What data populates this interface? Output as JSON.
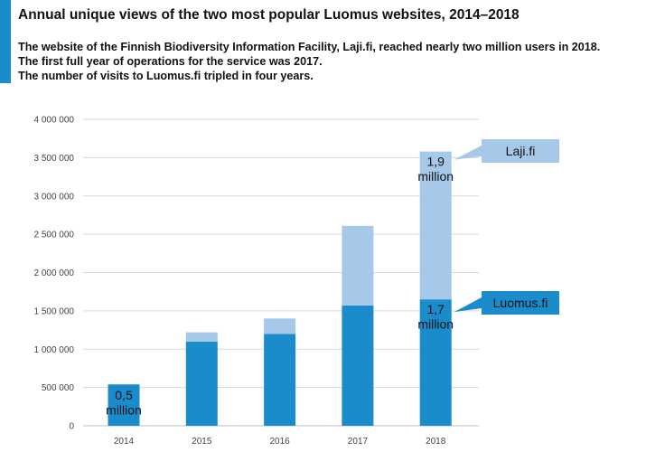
{
  "title": "Annual unique views of the two most popular Luomus websites, 2014–2018",
  "subtitle_lines": [
    "The website of the Finnish Biodiversity Information Facility, Laji.fi, reached nearly two million users in 2018.",
    "The first full year of operations for the service was 2017.",
    "The number of visits to Luomus.fi tripled in four years."
  ],
  "colors": {
    "accent": "#1b8ccb",
    "luomus": "#1b8ccb",
    "laji": "#a6c9e9",
    "grid": "#d9d9d9"
  },
  "chart_data": {
    "type": "bar",
    "stacked": true,
    "categories": [
      "2014",
      "2015",
      "2016",
      "2017",
      "2018"
    ],
    "series": [
      {
        "name": "Luomus.fi",
        "values": [
          540000,
          1100000,
          1200000,
          1570000,
          1650000
        ]
      },
      {
        "name": "Laji.fi",
        "values": [
          0,
          120000,
          200000,
          1040000,
          1930000
        ]
      }
    ],
    "ylim": [
      0,
      4000000
    ],
    "y_ticks": [
      {
        "value": 0,
        "label": "0"
      },
      {
        "value": 500000,
        "label": "500 000"
      },
      {
        "value": 1000000,
        "label": "1 000 000"
      },
      {
        "value": 1500000,
        "label": "1 500 000"
      },
      {
        "value": 2000000,
        "label": "2 000 000"
      },
      {
        "value": 2500000,
        "label": "2 500 000"
      },
      {
        "value": 3000000,
        "label": "3 000 000"
      },
      {
        "value": 3500000,
        "label": "3 500 000"
      },
      {
        "value": 4000000,
        "label": "4 000 000"
      }
    ],
    "grid": true,
    "annotations": [
      {
        "category": "2014",
        "series": "Luomus.fi",
        "lines": [
          "0,5",
          "million"
        ]
      },
      {
        "category": "2018",
        "series": "Laji.fi",
        "lines": [
          "1,9",
          "million"
        ]
      },
      {
        "category": "2018",
        "series": "Luomus.fi",
        "lines": [
          "1,7",
          "million"
        ]
      }
    ],
    "legend": [
      {
        "series": "Laji.fi",
        "label": "Laji.fi"
      },
      {
        "series": "Luomus.fi",
        "label": "Luomus.fi"
      }
    ],
    "legend_position": "right of the 2018 bar"
  }
}
